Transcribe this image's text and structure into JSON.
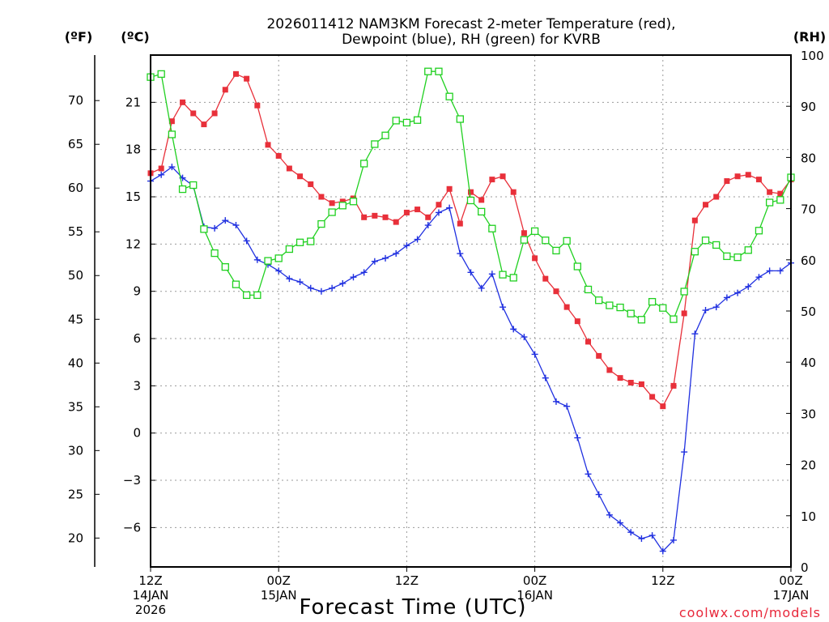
{
  "chart_data": {
    "type": "line",
    "title_line1": "2026011412 NAM3KM Forecast 2-meter Temperature (red),",
    "title_line2": "Dewpoint (blue), RH (green) for KVRB",
    "xlabel": "Forecast Time (UTC)",
    "credit": "coolwx.com/models",
    "units": {
      "fahrenheit": "(ºF)",
      "celsius": "(ºC)",
      "rh": "(RH)"
    },
    "x_range_hours": [
      0,
      60
    ],
    "celsius_range": [
      -8.5,
      24.0
    ],
    "rh_range": [
      0,
      100
    ],
    "x_ticks": [
      {
        "hour": 0,
        "line1": "12Z",
        "line2": "14JAN",
        "line3": "2026"
      },
      {
        "hour": 12,
        "line1": "00Z",
        "line2": "15JAN",
        "line3": ""
      },
      {
        "hour": 24,
        "line1": "12Z",
        "line2": "",
        "line3": ""
      },
      {
        "hour": 36,
        "line1": "00Z",
        "line2": "16JAN",
        "line3": ""
      },
      {
        "hour": 48,
        "line1": "12Z",
        "line2": "",
        "line3": ""
      },
      {
        "hour": 60,
        "line1": "00Z",
        "line2": "17JAN",
        "line3": ""
      }
    ],
    "celsius_ticks": [
      -6,
      -3,
      0,
      3,
      6,
      9,
      12,
      15,
      18,
      21
    ],
    "fahrenheit_ticks": [
      20,
      25,
      30,
      35,
      40,
      45,
      50,
      55,
      60,
      65,
      70
    ],
    "rh_ticks": [
      0,
      10,
      20,
      30,
      40,
      50,
      60,
      70,
      80,
      90,
      100
    ],
    "hours": [
      0,
      1,
      2,
      3,
      4,
      5,
      6,
      7,
      8,
      9,
      10,
      11,
      12,
      13,
      14,
      15,
      16,
      17,
      18,
      19,
      20,
      21,
      22,
      23,
      24,
      25,
      26,
      27,
      28,
      29,
      30,
      31,
      32,
      33,
      34,
      35,
      36,
      37,
      38,
      39,
      40,
      41,
      42,
      43,
      44,
      45,
      46,
      47,
      48,
      49,
      50,
      51,
      52,
      53,
      54,
      55,
      56,
      57,
      58,
      59,
      60
    ],
    "series": [
      {
        "name": "2-meter Temperature",
        "unit": "C",
        "color": "#e8303a",
        "marker": "filled-square",
        "values": [
          16.5,
          16.8,
          19.8,
          21.0,
          20.3,
          19.6,
          20.3,
          21.8,
          22.8,
          22.5,
          20.8,
          18.3,
          17.6,
          16.8,
          16.3,
          15.8,
          15.0,
          14.6,
          14.7,
          14.9,
          13.7,
          13.8,
          13.7,
          13.4,
          14.0,
          14.2,
          13.7,
          14.5,
          15.5,
          13.3,
          15.3,
          14.8,
          16.1,
          16.3,
          15.3,
          12.7,
          11.1,
          9.8,
          9.0,
          8.0,
          7.1,
          5.8,
          4.9,
          4.0,
          3.5,
          3.2,
          3.1,
          2.3,
          1.7,
          3.0,
          7.6,
          13.5,
          14.5,
          15.0,
          16.0,
          16.3,
          16.4,
          16.1,
          15.3,
          15.2,
          16.1
        ]
      },
      {
        "name": "Dewpoint",
        "unit": "C",
        "color": "#2030e0",
        "marker": "plus",
        "values": [
          16.0,
          16.4,
          16.9,
          16.2,
          15.7,
          13.1,
          13.0,
          13.5,
          13.2,
          12.2,
          11.0,
          10.7,
          10.3,
          9.8,
          9.6,
          9.2,
          9.0,
          9.2,
          9.5,
          9.9,
          10.2,
          10.9,
          11.1,
          11.4,
          11.9,
          12.3,
          13.2,
          14.0,
          14.3,
          11.4,
          10.2,
          9.2,
          10.1,
          8.0,
          6.6,
          6.1,
          5.0,
          3.5,
          2.0,
          1.7,
          -0.3,
          -2.6,
          -3.9,
          -5.2,
          -5.7,
          -6.3,
          -6.7,
          -6.5,
          -7.5,
          -6.8,
          -1.2,
          6.3,
          7.8,
          8.0,
          8.6,
          8.9,
          9.3,
          9.9,
          10.3,
          10.3,
          10.8
        ]
      },
      {
        "name": "RH",
        "unit": "%",
        "color": "#20d020",
        "marker": "open-square",
        "values": [
          95.7,
          96.3,
          84.5,
          73.8,
          74.6,
          66.0,
          61.3,
          58.6,
          55.2,
          53.1,
          53.1,
          59.8,
          60.3,
          62.1,
          63.4,
          63.6,
          67.0,
          69.3,
          70.6,
          71.4,
          78.8,
          82.6,
          84.3,
          87.2,
          86.8,
          87.3,
          96.8,
          96.8,
          91.9,
          87.5,
          71.6,
          69.4,
          66.1,
          57.1,
          56.5,
          63.9,
          65.6,
          63.8,
          61.8,
          63.7,
          58.7,
          54.2,
          52.1,
          51.1,
          50.7,
          49.5,
          48.3,
          51.8,
          50.6,
          48.4,
          53.8,
          61.6,
          63.8,
          62.9,
          60.7,
          60.5,
          61.9,
          65.7,
          71.2,
          71.7,
          76.1
        ]
      }
    ]
  }
}
